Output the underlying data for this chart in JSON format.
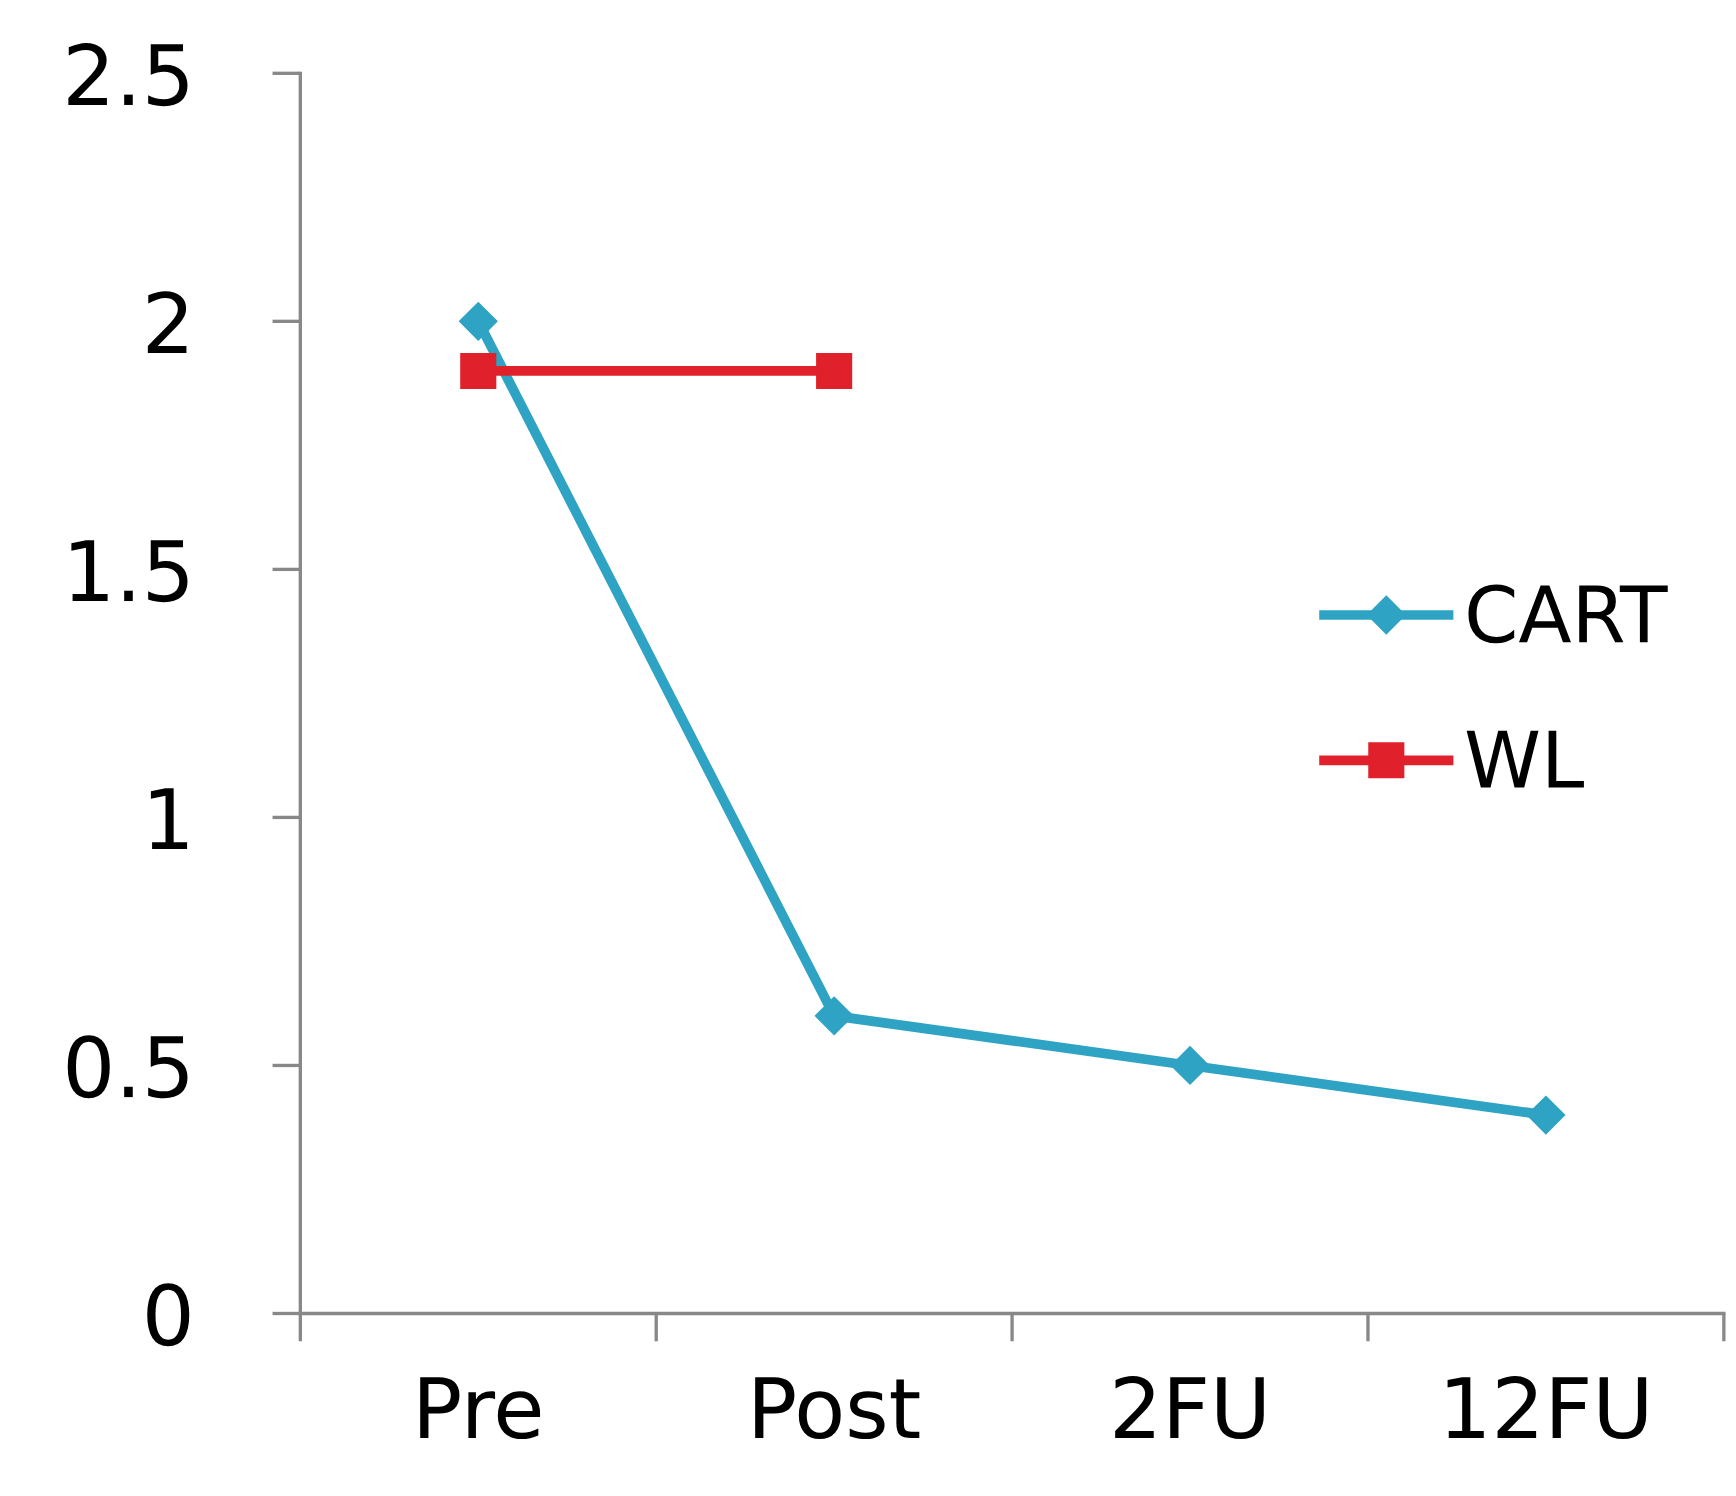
{
  "chart_data": {
    "type": "line",
    "categories": [
      "Pre",
      "Post",
      "2FU",
      "12FU"
    ],
    "series": [
      {
        "name": "CART",
        "color": "#2ea3c3",
        "marker": "diamond",
        "values": [
          2,
          0.6,
          0.5,
          0.4
        ]
      },
      {
        "name": "WL",
        "color": "#e0202a",
        "marker": "square",
        "values": [
          1.9,
          1.9,
          null,
          null
        ]
      }
    ],
    "ylim": [
      0,
      2.5
    ],
    "yticks": [
      0,
      0.5,
      1,
      1.5,
      2,
      2.5
    ],
    "grid": false,
    "legend": "right"
  }
}
